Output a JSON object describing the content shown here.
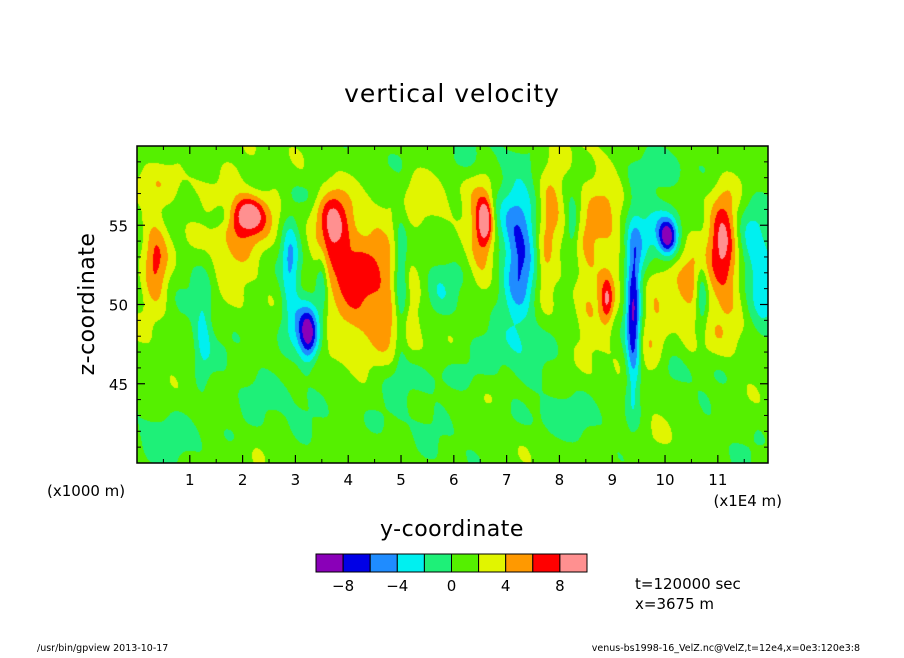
{
  "chart_data": {
    "type": "heatmap",
    "title": "vertical velocity",
    "xlabel": "y-coordinate",
    "ylabel": "z-coordinate",
    "x_unit_left": "(x1000 m)",
    "x_unit_right": "(x1E4 m)",
    "xlim": [
      0,
      11.95
    ],
    "ylim": [
      40,
      60
    ],
    "x_ticks": [
      "1",
      "2",
      "3",
      "4",
      "5",
      "6",
      "7",
      "8",
      "9",
      "10",
      "11"
    ],
    "x_tick_values": [
      1,
      2,
      3,
      4,
      5,
      6,
      7,
      8,
      9,
      10,
      11
    ],
    "y_ticks": [
      "45",
      "50",
      "55"
    ],
    "y_tick_values": [
      45,
      50,
      55
    ],
    "colorbar": {
      "levels": [
        -10,
        -8,
        -6,
        -4,
        -2,
        0,
        2,
        4,
        6,
        8,
        10
      ],
      "labels": [
        "-8",
        "-4",
        "0",
        "4",
        "8"
      ],
      "label_values": [
        -8,
        -4,
        0,
        4,
        8
      ],
      "colors": [
        "#8a00b8",
        "#0000e6",
        "#1f8cff",
        "#00f0f0",
        "#1ef078",
        "#55f000",
        "#e1f500",
        "#ff9900",
        "#ff0000",
        "#ff9090"
      ]
    },
    "features": [
      {
        "y": 0.35,
        "z": 52.8,
        "sy": 0.18,
        "sz": 2.0,
        "w": 6.2
      },
      {
        "y": 1.25,
        "z": 48.5,
        "sy": 0.12,
        "sz": 2.2,
        "w": -3.8
      },
      {
        "y": 1.85,
        "z": 54.5,
        "sy": 0.35,
        "sz": 2.8,
        "w": 2.5
      },
      {
        "y": 2.1,
        "z": 55.7,
        "sy": 0.22,
        "sz": 0.8,
        "w": 6.5
      },
      {
        "y": 2.35,
        "z": 55.3,
        "sy": 0.4,
        "sz": 1.5,
        "w": 2.5
      },
      {
        "y": 1.6,
        "z": 55.5,
        "sy": 0.15,
        "sz": 0.6,
        "w": -2.5
      },
      {
        "y": 2.9,
        "z": 52.5,
        "sy": 0.12,
        "sz": 2.2,
        "w": -5.2
      },
      {
        "y": 3.25,
        "z": 48.0,
        "sy": 0.14,
        "sz": 1.3,
        "w": -9.0
      },
      {
        "y": 3.05,
        "z": 48.8,
        "sy": 0.25,
        "sz": 1.3,
        "w": -3.0
      },
      {
        "y": 3.5,
        "z": 51.5,
        "sy": 0.08,
        "sz": 1.5,
        "w": -3.5
      },
      {
        "y": 3.7,
        "z": 54.7,
        "sy": 0.22,
        "sz": 2.0,
        "w": 6.0
      },
      {
        "y": 4.4,
        "z": 52.0,
        "sy": 0.55,
        "sz": 3.5,
        "w": 3.6
      },
      {
        "y": 4.1,
        "z": 50.0,
        "sy": 0.4,
        "sz": 2.5,
        "w": 2.5
      },
      {
        "y": 5.0,
        "z": 51.0,
        "sy": 0.09,
        "sz": 3.2,
        "w": -5.0
      },
      {
        "y": 4.9,
        "z": 48.0,
        "sy": 0.35,
        "sz": 1.5,
        "w": 1.5
      },
      {
        "y": 5.7,
        "z": 51.2,
        "sy": 0.2,
        "sz": 1.4,
        "w": -2.5
      },
      {
        "y": 5.5,
        "z": 56.3,
        "sy": 0.3,
        "sz": 1.5,
        "w": 2.5
      },
      {
        "y": 6.5,
        "z": 54.5,
        "sy": 0.18,
        "sz": 2.5,
        "w": 4.5
      },
      {
        "y": 6.6,
        "z": 55.3,
        "sy": 0.1,
        "sz": 1.0,
        "w": 7.0
      },
      {
        "y": 7.25,
        "z": 52.5,
        "sy": 0.22,
        "sz": 2.8,
        "w": -7.0
      },
      {
        "y": 7.1,
        "z": 55.0,
        "sy": 0.3,
        "sz": 1.4,
        "w": -3.0
      },
      {
        "y": 7.7,
        "z": 52.7,
        "sy": 0.12,
        "sz": 1.5,
        "w": 2.8
      },
      {
        "y": 7.85,
        "z": 55.8,
        "sy": 0.18,
        "sz": 2.0,
        "w": 4.8
      },
      {
        "y": 8.25,
        "z": 55.0,
        "sy": 0.08,
        "sz": 1.0,
        "w": -3.0
      },
      {
        "y": 8.5,
        "z": 52.5,
        "sy": 0.15,
        "sz": 3.0,
        "w": 2.5
      },
      {
        "y": 8.85,
        "z": 53.5,
        "sy": 0.25,
        "sz": 4.0,
        "w": 3.5
      },
      {
        "y": 8.9,
        "z": 50.2,
        "sy": 0.08,
        "sz": 1.0,
        "w": 4.8
      },
      {
        "y": 9.4,
        "z": 49.0,
        "sy": 0.1,
        "sz": 3.5,
        "w": -9.0
      },
      {
        "y": 9.5,
        "z": 53.5,
        "sy": 0.18,
        "sz": 1.8,
        "w": -4.0
      },
      {
        "y": 9.75,
        "z": 49.0,
        "sy": 0.22,
        "sz": 3.0,
        "w": 3.5
      },
      {
        "y": 9.9,
        "z": 54.8,
        "sy": 0.25,
        "sz": 1.2,
        "w": -4.8
      },
      {
        "y": 10.05,
        "z": 54.2,
        "sy": 0.12,
        "sz": 0.8,
        "w": -7.5
      },
      {
        "y": 10.45,
        "z": 51.5,
        "sy": 0.2,
        "sz": 3.5,
        "w": 2.5
      },
      {
        "y": 10.7,
        "z": 50.5,
        "sy": 0.08,
        "sz": 1.5,
        "w": -4.5
      },
      {
        "y": 11.1,
        "z": 54.0,
        "sy": 0.18,
        "sz": 2.0,
        "w": 6.0
      },
      {
        "y": 11.15,
        "z": 52.0,
        "sy": 0.35,
        "sz": 3.5,
        "w": 3.2
      },
      {
        "y": 11.85,
        "z": 52.2,
        "sy": 0.25,
        "sz": 2.5,
        "w": -4.5
      },
      {
        "y": 11.55,
        "z": 54.5,
        "sy": 0.2,
        "sz": 2.0,
        "w": -2.5
      },
      {
        "y": 0.3,
        "z": 57.5,
        "sy": 0.9,
        "sz": 0.8,
        "w": 1.3
      },
      {
        "y": 3.2,
        "z": 57.0,
        "sy": 0.3,
        "sz": 0.6,
        "w": -1.5
      },
      {
        "y": 5.8,
        "z": 45.5,
        "sy": 0.8,
        "sz": 0.8,
        "w": -1.5
      },
      {
        "y": 2.6,
        "z": 44.5,
        "sy": 0.6,
        "sz": 0.8,
        "w": -1.4
      },
      {
        "y": 8.0,
        "z": 43.0,
        "sy": 0.8,
        "sz": 1.0,
        "w": -1.4
      },
      {
        "y": 10.5,
        "z": 46.0,
        "sy": 0.6,
        "sz": 0.8,
        "w": -1.4
      },
      {
        "y": 0.8,
        "z": 41.8,
        "sy": 0.7,
        "sz": 1.2,
        "w": -1.5
      },
      {
        "y": 4.5,
        "z": 42.5,
        "sy": 0.8,
        "sz": 1.0,
        "w": -1.4
      },
      {
        "y": 7.0,
        "z": 47.5,
        "sy": 0.6,
        "sz": 1.0,
        "w": -1.3
      },
      {
        "y": 6.3,
        "z": 59.0,
        "sy": 0.8,
        "sz": 0.8,
        "w": -1.4
      },
      {
        "y": 10.2,
        "z": 58.5,
        "sy": 0.8,
        "sz": 0.8,
        "w": -1.3
      }
    ]
  },
  "annotations": {
    "time": "t=120000 sec",
    "xpos": "x=3675 m"
  },
  "footer": {
    "left": "/usr/bin/gpview   2013-10-17",
    "right": "venus-bs1998-16_VelZ.nc@VelZ,t=12e4,x=0e3:120e3:8"
  }
}
